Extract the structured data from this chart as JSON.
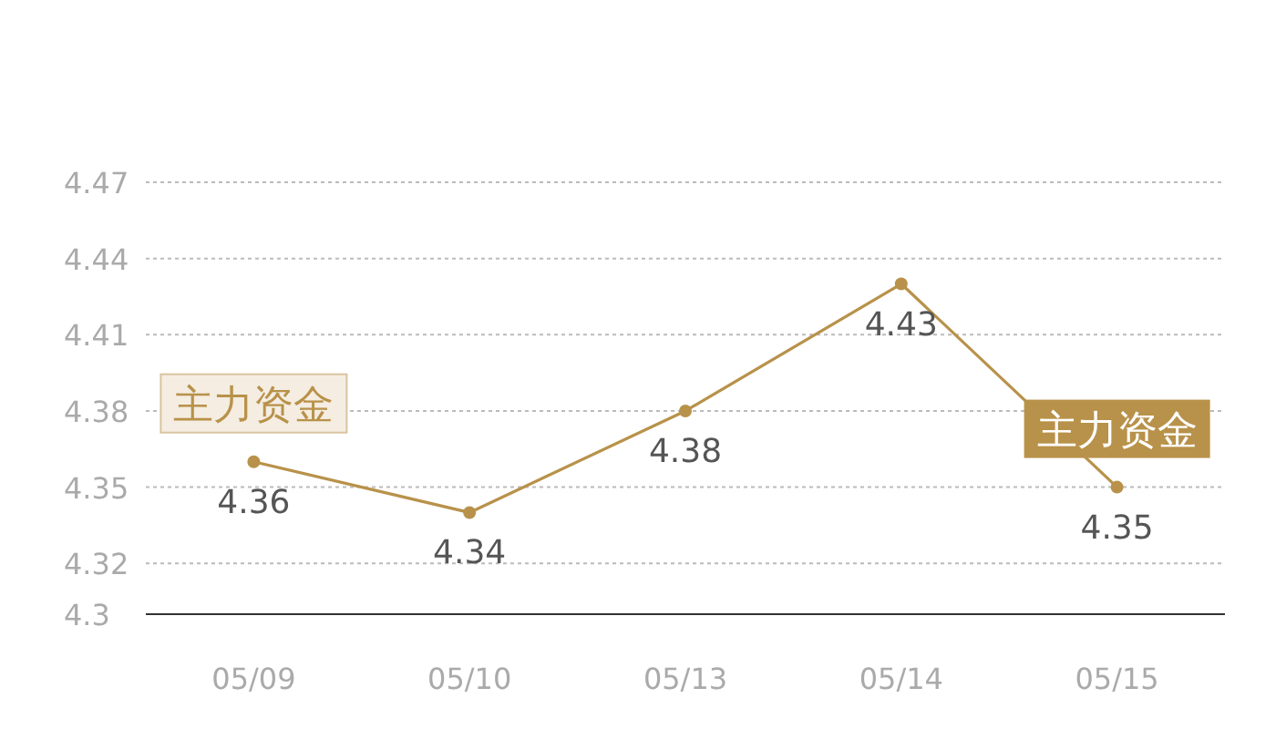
{
  "chart_data": {
    "type": "line",
    "categories": [
      "05/09",
      "05/10",
      "05/13",
      "05/14",
      "05/15"
    ],
    "series": [
      {
        "color": "#b8924a",
        "values": [
          4.36,
          4.34,
          4.38,
          4.43,
          4.35
        ]
      }
    ],
    "ylim": [
      4.3,
      4.47
    ],
    "yticks": [
      4.3,
      4.32,
      4.35,
      4.38,
      4.41,
      4.44,
      4.47
    ],
    "grid": "y",
    "marker": "circle",
    "line_style": "solid",
    "data_labels": true,
    "annotations": [
      {
        "text": "主力资金",
        "x": "05/09",
        "y": 4.36
      },
      {
        "text": "主力资金",
        "x": "05/15",
        "y": 4.35
      }
    ]
  }
}
